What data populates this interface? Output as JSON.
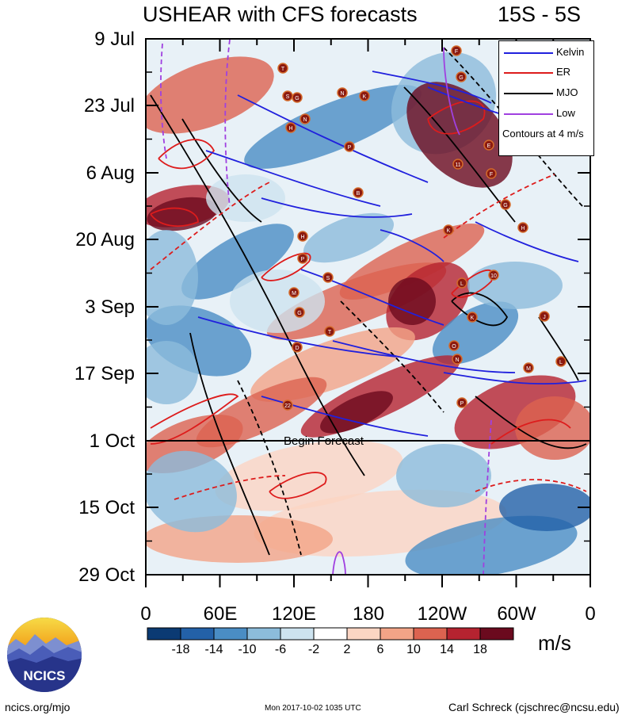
{
  "title": "USHEAR with CFS forecasts",
  "region": "15S - 5S",
  "y_ticks": [
    "9 Jul",
    "23 Jul",
    "6 Aug",
    "20 Aug",
    "3 Sep",
    "17 Sep",
    "1 Oct",
    "15 Oct",
    "29 Oct"
  ],
  "x_ticks": [
    "0",
    "60E",
    "120E",
    "180",
    "120W",
    "60W",
    "0"
  ],
  "legend": {
    "items": [
      {
        "label": "Kelvin",
        "color": "#2020dd"
      },
      {
        "label": "ER",
        "color": "#dd1c1c"
      },
      {
        "label": "MJO",
        "color": "#000000"
      },
      {
        "label": "Low",
        "color": "#a040e0"
      }
    ],
    "note": "Contours at 4 m/s"
  },
  "forecast_label": "Begin Forecast",
  "colorbar": {
    "labels": [
      "-18",
      "-14",
      "-10",
      "-6",
      "-2",
      "2",
      "6",
      "10",
      "14",
      "18"
    ],
    "colors": [
      "#0b3a73",
      "#2361a8",
      "#4a8dc4",
      "#8cbcdb",
      "#cde3ef",
      "#ffffff",
      "#fbd5c3",
      "#f2a487",
      "#dc6350",
      "#b52330",
      "#6b0a1e"
    ],
    "units": "m/s"
  },
  "logo_text": "NCICS",
  "footer": {
    "left": "ncics.org/mjo",
    "middle": "Mon 2017-10-02 1035 UTC",
    "right": "Carl Schreck (cjschrec@ncsu.edu)"
  },
  "storm_labels": [
    "F",
    "G",
    "T",
    "S",
    "G",
    "N",
    "K",
    "H",
    "N",
    "P",
    "11",
    "E",
    "F",
    "B",
    "G",
    "H",
    "K",
    "H",
    "P",
    "S",
    "10",
    "L",
    "M",
    "G",
    "K",
    "T",
    "J",
    "D",
    "O",
    "N",
    "M",
    "L",
    "22",
    "P"
  ],
  "chart_data": {
    "type": "heatmap",
    "title": "USHEAR with CFS forecasts",
    "subtitle": "15S - 5S",
    "xlabel": "",
    "ylabel": "",
    "x_axis": "longitude",
    "x_range": [
      "0",
      "0"
    ],
    "y_axis": "date",
    "y_range": [
      "9 Jul",
      "29 Oct"
    ],
    "forecast_start": "1 Oct",
    "units": "m/s",
    "contour_interval": "4 m/s",
    "levels": [
      -18,
      -14,
      -10,
      -6,
      -2,
      2,
      6,
      10,
      14,
      18
    ],
    "overlays": [
      "Kelvin",
      "ER",
      "MJO",
      "Low"
    ],
    "legend_position": "top-right"
  }
}
